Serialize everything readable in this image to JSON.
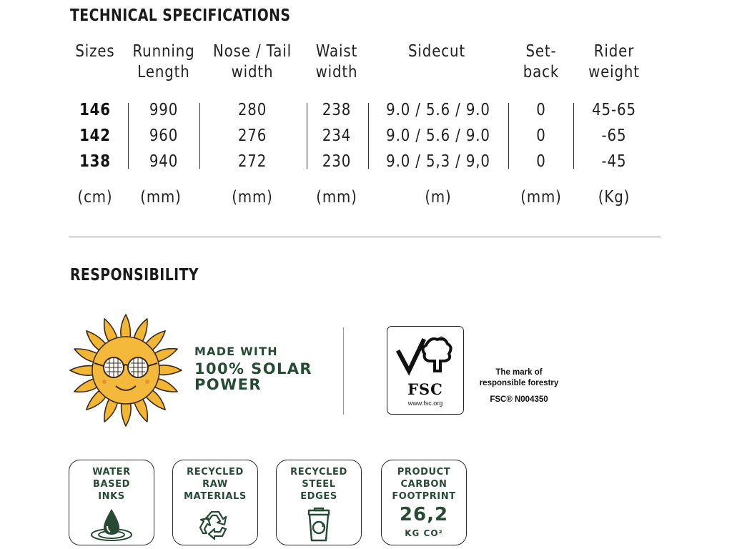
{
  "specs": {
    "title": "TECHNICAL SPECIFICATIONS",
    "headers": [
      {
        "l1": "Sizes",
        "l2": ""
      },
      {
        "l1": "Running",
        "l2": "Length"
      },
      {
        "l1": "Nose / Tail",
        "l2": "width"
      },
      {
        "l1": "Waist",
        "l2": "width"
      },
      {
        "l1": "Sidecut",
        "l2": ""
      },
      {
        "l1": "Set-",
        "l2": "back"
      },
      {
        "l1": "Rider",
        "l2": "weight"
      }
    ],
    "rows": [
      [
        "146",
        "990",
        "280",
        "238",
        "9.0 / 5.6 / 9.0",
        "0",
        "45-65"
      ],
      [
        "142",
        "960",
        "276",
        "234",
        "9.0 / 5.6 / 9.0",
        "0",
        "-65"
      ],
      [
        "138",
        "940",
        "272",
        "230",
        "9.0 / 5,3 / 9,0",
        "0",
        "-45"
      ]
    ],
    "units": [
      "(cm)",
      "(mm)",
      "(mm)",
      "(mm)",
      "(m)",
      "(mm)",
      "(Kg)"
    ]
  },
  "responsibility": {
    "title": "RESPONSIBILITY",
    "solar": {
      "line1": "MADE WITH",
      "line2": "100% SOLAR",
      "line3": "POWER",
      "icon": "sun-with-glasses-icon"
    },
    "fsc": {
      "logo_word": "FSC",
      "registered": "®",
      "url": "www.fsc.org",
      "mark_line1": "The mark of",
      "mark_line2": "responsible forestry",
      "code": "FSC® N004350",
      "icon": "fsc-tree-icon"
    },
    "badges": [
      {
        "lines": [
          "WATER",
          "BASED",
          "INKS"
        ],
        "icon": "water-drop-icon"
      },
      {
        "lines": [
          "RECYCLED",
          "RAW",
          "MATERIALS"
        ],
        "icon": "recycle-icon"
      },
      {
        "lines": [
          "RECYCLED",
          "STEEL",
          "EDGES"
        ],
        "icon": "recycle-bin-icon"
      },
      {
        "lines": [
          "PRODUCT",
          "CARBON",
          "FOOTPRINT"
        ],
        "value": "26,2",
        "unit": "KG CO²"
      }
    ]
  },
  "colors": {
    "accent_green": "#274a35",
    "sun_yellow": "#f2b632",
    "text": "#222222"
  }
}
